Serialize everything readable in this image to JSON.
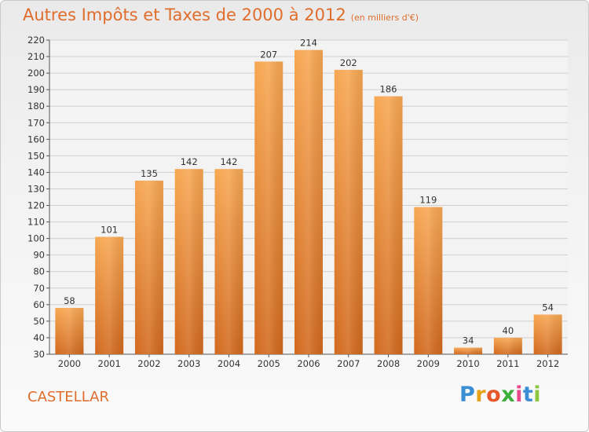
{
  "header": {
    "title": "Autres Impôts et Taxes de 2000 à 2012",
    "subtitle": "(en milliers d'€)"
  },
  "footer": {
    "commune": "CASTELLAR",
    "logo_letters": [
      "P",
      "r",
      "o",
      "x",
      "i",
      "t",
      "i"
    ],
    "logo_colors": [
      "#3a8fd4",
      "#e8a21a",
      "#e6582a",
      "#3cae3c",
      "#e84a8a",
      "#3a8fd4",
      "#8cc63f"
    ]
  },
  "colors": {
    "accent": "#e06d2c",
    "bar_top": "#f7a752",
    "bar_bottom": "#d2691e"
  },
  "chart_data": {
    "type": "bar",
    "title": "Autres Impôts et Taxes de 2000 à 2012",
    "subtitle": "(en milliers d'€)",
    "categories": [
      "2000",
      "2001",
      "2002",
      "2003",
      "2004",
      "2005",
      "2006",
      "2007",
      "2008",
      "2009",
      "2010",
      "2011",
      "2012"
    ],
    "values": [
      58,
      101,
      135,
      142,
      142,
      207,
      214,
      202,
      186,
      119,
      34,
      40,
      54
    ],
    "ylim": [
      30,
      220
    ],
    "yticks": [
      30,
      40,
      50,
      60,
      70,
      80,
      90,
      100,
      110,
      120,
      130,
      140,
      150,
      160,
      170,
      180,
      190,
      200,
      210,
      220
    ],
    "grid": true,
    "legend": "none"
  }
}
